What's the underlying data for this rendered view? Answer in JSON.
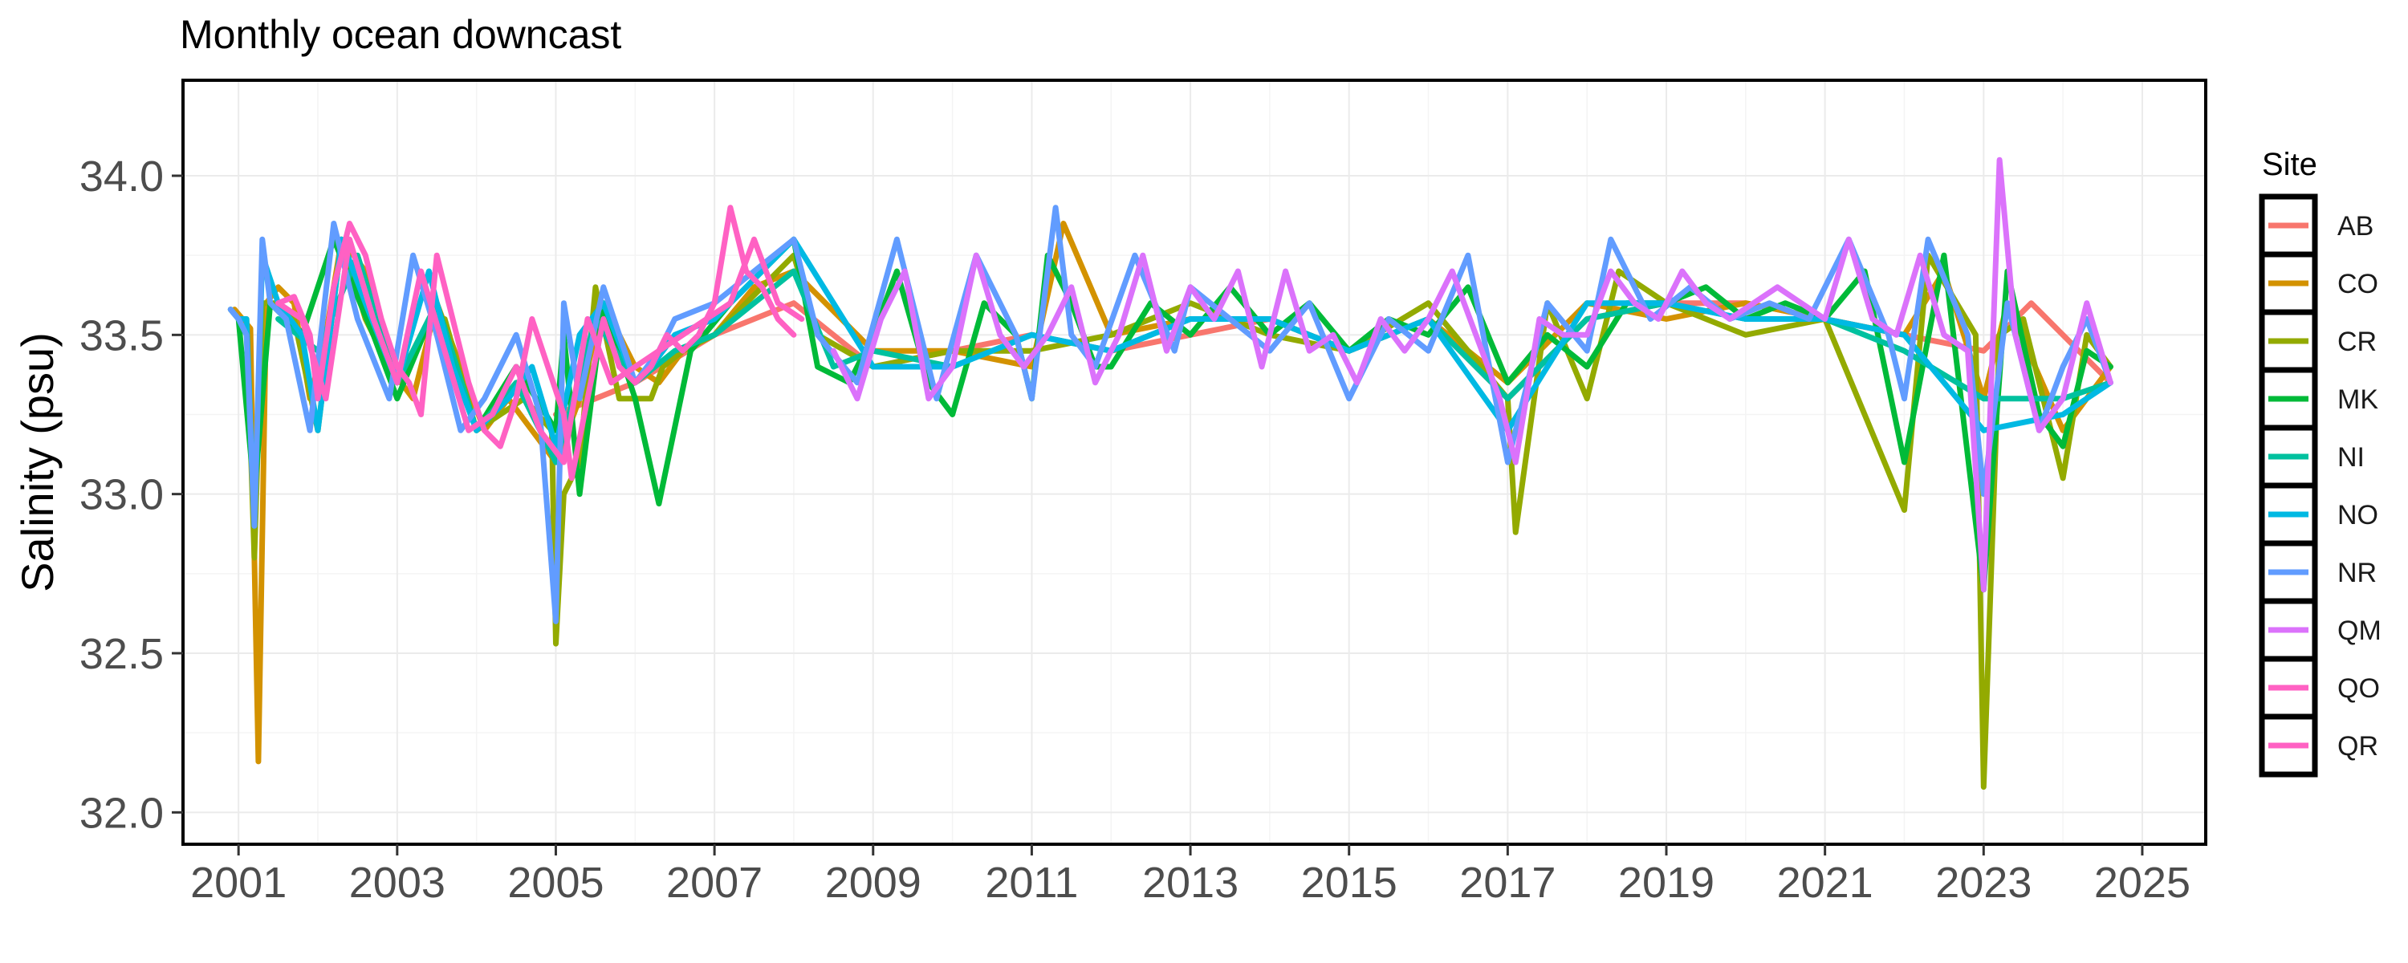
{
  "chart_data": {
    "type": "line",
    "title": "Monthly ocean downcast",
    "xlabel": "",
    "ylabel": "Salinity (psu)",
    "xlim": [
      2000.3,
      2025.8
    ],
    "ylim": [
      31.9,
      34.3
    ],
    "x_ticks": [
      2001,
      2003,
      2005,
      2007,
      2009,
      2011,
      2013,
      2015,
      2017,
      2019,
      2021,
      2023,
      2025
    ],
    "x_tick_labels": [
      "2001",
      "2003",
      "2005",
      "2007",
      "2009",
      "2011",
      "2013",
      "2015",
      "2017",
      "2019",
      "2021",
      "2023",
      "2025"
    ],
    "y_ticks": [
      32.0,
      32.5,
      33.0,
      33.5,
      34.0
    ],
    "y_tick_labels": [
      "32.0",
      "32.5",
      "33.0",
      "33.5",
      "34.0"
    ],
    "grid": true,
    "legend": {
      "title": "Site",
      "position": "right"
    },
    "series": [
      {
        "name": "AB",
        "color": "#F8766D",
        "x": [
          2005.0,
          2006.0,
          2007.0,
          2008.0,
          2009.0,
          2010.0,
          2011.0,
          2012.0,
          2013.0,
          2014.0,
          2015.0,
          2016.0,
          2017.0,
          2018.0,
          2019.0,
          2020.0,
          2021.0,
          2022.0,
          2023.0,
          2023.6,
          2024.6
        ],
        "y": [
          33.25,
          33.35,
          33.5,
          33.6,
          33.4,
          33.45,
          33.5,
          33.45,
          33.5,
          33.55,
          33.45,
          33.55,
          33.3,
          33.55,
          33.6,
          33.6,
          33.55,
          33.5,
          33.45,
          33.6,
          33.35
        ]
      },
      {
        "name": "CO",
        "color": "#D39200",
        "x": [
          2000.95,
          2001.05,
          2001.15,
          2001.2,
          2001.25,
          2001.35,
          2001.5,
          2001.7,
          2001.9,
          2002.1,
          2002.3,
          2002.6,
          2002.9,
          2003.2,
          2003.5,
          2003.8,
          2004.1,
          2004.4,
          2004.7,
          2005.0,
          2005.3,
          2005.6,
          2006.0,
          2006.3,
          2006.6,
          2007.0,
          2007.5,
          2008.0,
          2009.0,
          2010.0,
          2011.0,
          2011.4,
          2012.0,
          2013.0,
          2014.0,
          2015.0,
          2016.0,
          2017.0,
          2018.0,
          2019.0,
          2020.0,
          2021.0,
          2022.0,
          2022.5,
          2023.0,
          2023.3,
          2024.0,
          2024.6
        ],
        "y": [
          33.58,
          33.55,
          33.52,
          32.8,
          32.16,
          33.6,
          33.65,
          33.6,
          33.3,
          33.5,
          33.8,
          33.7,
          33.4,
          33.3,
          33.6,
          33.4,
          33.2,
          33.3,
          33.2,
          33.1,
          33.3,
          33.6,
          33.4,
          33.35,
          33.45,
          33.5,
          33.65,
          33.7,
          33.45,
          33.45,
          33.4,
          33.85,
          33.5,
          33.55,
          33.55,
          33.45,
          33.55,
          33.35,
          33.6,
          33.55,
          33.6,
          33.55,
          33.5,
          33.7,
          33.3,
          33.6,
          33.2,
          33.4
        ]
      },
      {
        "name": "CR",
        "color": "#93AA00",
        "x": [
          2000.9,
          2001.0,
          2001.1,
          2001.2,
          2001.3,
          2001.5,
          2001.7,
          2002.0,
          2002.3,
          2002.6,
          2003.0,
          2003.3,
          2003.6,
          2004.0,
          2004.3,
          2004.6,
          2004.95,
          2005.0,
          2005.1,
          2005.3,
          2005.5,
          2005.8,
          2006.0,
          2006.2,
          2006.35,
          2006.6,
          2007.0,
          2008.0,
          2008.3,
          2009.0,
          2010.0,
          2011.0,
          2012.0,
          2013.0,
          2014.0,
          2015.0,
          2016.0,
          2017.0,
          2017.1,
          2017.5,
          2018.0,
          2018.4,
          2019.0,
          2020.0,
          2021.0,
          2022.0,
          2022.3,
          2022.9,
          2023.0,
          2023.2,
          2023.5,
          2024.0,
          2024.3,
          2024.6
        ],
        "y": [
          33.58,
          33.55,
          33.55,
          32.8,
          33.6,
          33.6,
          33.55,
          33.2,
          33.8,
          33.55,
          33.35,
          33.5,
          33.55,
          33.2,
          33.25,
          33.3,
          33.2,
          32.53,
          33.0,
          33.1,
          33.65,
          33.3,
          33.3,
          33.3,
          33.4,
          33.45,
          33.5,
          33.75,
          33.5,
          33.4,
          33.45,
          33.45,
          33.5,
          33.6,
          33.5,
          33.45,
          33.6,
          33.3,
          32.88,
          33.6,
          33.3,
          33.7,
          33.6,
          33.5,
          33.55,
          32.95,
          33.75,
          33.5,
          32.08,
          33.5,
          33.55,
          33.05,
          33.5,
          33.4
        ]
      },
      {
        "name": "MK",
        "color": "#00BA38",
        "x": [
          2001.0,
          2001.2,
          2001.4,
          2001.8,
          2002.2,
          2002.7,
          2003.0,
          2003.5,
          2004.0,
          2004.5,
          2005.0,
          2005.1,
          2005.3,
          2005.6,
          2006.0,
          2006.3,
          2006.7,
          2007.2,
          2008.0,
          2008.3,
          2008.7,
          2009.0,
          2009.3,
          2009.7,
          2010.0,
          2010.4,
          2010.8,
          2011.0,
          2011.2,
          2011.5,
          2011.8,
          2012.0,
          2012.5,
          2013.0,
          2013.5,
          2014.0,
          2014.5,
          2015.0,
          2015.5,
          2016.0,
          2016.5,
          2017.0,
          2017.5,
          2018.0,
          2018.5,
          2019.0,
          2019.5,
          2020.0,
          2020.5,
          2021.0,
          2021.5,
          2022.0,
          2022.5,
          2023.0,
          2023.3,
          2023.7,
          2024.0,
          2024.3,
          2024.6
        ],
        "y": [
          33.55,
          33.0,
          33.6,
          33.5,
          33.8,
          33.5,
          33.3,
          33.6,
          33.2,
          33.4,
          33.2,
          33.5,
          33.0,
          33.6,
          33.3,
          32.97,
          33.45,
          33.6,
          33.8,
          33.4,
          33.35,
          33.5,
          33.7,
          33.35,
          33.25,
          33.6,
          33.5,
          33.3,
          33.75,
          33.6,
          33.4,
          33.4,
          33.6,
          33.5,
          33.65,
          33.5,
          33.6,
          33.45,
          33.55,
          33.5,
          33.65,
          33.35,
          33.5,
          33.4,
          33.6,
          33.6,
          33.65,
          33.55,
          33.6,
          33.55,
          33.7,
          33.1,
          33.75,
          32.7,
          33.7,
          33.25,
          33.15,
          33.45,
          33.4
        ]
      },
      {
        "name": "NI",
        "color": "#00C19F",
        "x": [
          2001.5,
          2002.0,
          2002.5,
          2003.0,
          2003.5,
          2004.0,
          2004.5,
          2005.0,
          2005.5,
          2006.0,
          2006.5,
          2007.0,
          2008.0,
          2008.5,
          2009.0,
          2010.0,
          2011.0,
          2012.0,
          2013.0,
          2014.0,
          2015.0,
          2016.0,
          2017.0,
          2018.0,
          2019.0,
          2020.0,
          2021.0,
          2022.0,
          2023.0,
          2024.0,
          2024.6
        ],
        "y": [
          33.55,
          33.45,
          33.75,
          33.35,
          33.6,
          33.2,
          33.35,
          33.1,
          33.55,
          33.35,
          33.45,
          33.5,
          33.7,
          33.4,
          33.45,
          33.4,
          33.5,
          33.45,
          33.55,
          33.55,
          33.45,
          33.55,
          33.3,
          33.55,
          33.6,
          33.55,
          33.55,
          33.45,
          33.3,
          33.3,
          33.35
        ]
      },
      {
        "name": "NO",
        "color": "#00B9E3",
        "x": [
          2000.9,
          2001.0,
          2001.1,
          2001.2,
          2001.3,
          2001.5,
          2001.8,
          2002.0,
          2002.3,
          2002.6,
          2003.0,
          2003.4,
          2003.7,
          2004.0,
          2004.4,
          2004.7,
          2005.0,
          2005.3,
          2005.6,
          2006.0,
          2006.2,
          2006.5,
          2007.0,
          2008.0,
          2009.0,
          2010.0,
          2011.0,
          2012.0,
          2013.0,
          2014.0,
          2015.0,
          2016.0,
          2017.0,
          2018.0,
          2019.0,
          2020.0,
          2021.0,
          2022.0,
          2023.0,
          2024.0,
          2024.6
        ],
        "y": [
          33.58,
          33.55,
          33.55,
          32.9,
          33.75,
          33.6,
          33.5,
          33.2,
          33.8,
          33.6,
          33.35,
          33.7,
          33.4,
          33.2,
          33.3,
          33.4,
          33.15,
          33.5,
          33.6,
          33.35,
          33.4,
          33.5,
          33.55,
          33.8,
          33.4,
          33.4,
          33.5,
          33.45,
          33.55,
          33.55,
          33.45,
          33.55,
          33.2,
          33.6,
          33.6,
          33.55,
          33.55,
          33.5,
          33.2,
          33.25,
          33.35
        ]
      },
      {
        "name": "NR",
        "color": "#619CFF",
        "x": [
          2000.9,
          2001.0,
          2001.1,
          2001.2,
          2001.3,
          2001.4,
          2001.6,
          2001.9,
          2002.2,
          2002.5,
          2002.9,
          2003.2,
          2003.5,
          2003.8,
          2004.1,
          2004.5,
          2004.8,
          2005.0,
          2005.1,
          2005.3,
          2005.6,
          2006.0,
          2006.3,
          2006.5,
          2007.0,
          2008.0,
          2008.3,
          2008.8,
          2009.3,
          2009.8,
          2010.3,
          2010.8,
          2011.0,
          2011.3,
          2011.5,
          2011.8,
          2012.3,
          2012.8,
          2013.0,
          2013.5,
          2014.0,
          2014.5,
          2015.0,
          2015.5,
          2016.0,
          2016.5,
          2017.0,
          2017.5,
          2018.0,
          2018.3,
          2018.8,
          2019.3,
          2019.8,
          2020.3,
          2020.8,
          2021.3,
          2021.8,
          2022.0,
          2022.3,
          2022.8,
          2023.0,
          2023.3,
          2023.7,
          2024.0,
          2024.3,
          2024.6
        ],
        "y": [
          33.58,
          33.55,
          33.5,
          32.9,
          33.8,
          33.6,
          33.55,
          33.2,
          33.85,
          33.55,
          33.3,
          33.75,
          33.5,
          33.2,
          33.3,
          33.5,
          33.25,
          32.6,
          33.6,
          33.3,
          33.65,
          33.35,
          33.45,
          33.55,
          33.6,
          33.8,
          33.5,
          33.35,
          33.8,
          33.3,
          33.75,
          33.5,
          33.3,
          33.9,
          33.5,
          33.4,
          33.75,
          33.45,
          33.65,
          33.55,
          33.45,
          33.6,
          33.3,
          33.55,
          33.45,
          33.75,
          33.1,
          33.6,
          33.45,
          33.8,
          33.55,
          33.65,
          33.55,
          33.6,
          33.55,
          33.8,
          33.5,
          33.3,
          33.8,
          33.5,
          33.0,
          33.6,
          33.2,
          33.4,
          33.55,
          33.35
        ]
      },
      {
        "name": "QM",
        "color": "#DB72FB",
        "x": [
          2008.5,
          2008.8,
          2009.1,
          2009.4,
          2009.7,
          2010.0,
          2010.3,
          2010.6,
          2010.9,
          2011.2,
          2011.5,
          2011.8,
          2012.1,
          2012.4,
          2012.7,
          2013.0,
          2013.3,
          2013.6,
          2013.9,
          2014.2,
          2014.5,
          2014.8,
          2015.1,
          2015.4,
          2015.7,
          2016.0,
          2016.3,
          2016.6,
          2016.9,
          2017.1,
          2017.4,
          2017.7,
          2018.0,
          2018.3,
          2018.6,
          2018.9,
          2019.2,
          2019.5,
          2019.8,
          2020.1,
          2020.4,
          2020.7,
          2021.0,
          2021.3,
          2021.6,
          2021.9,
          2022.2,
          2022.5,
          2022.8,
          2023.0,
          2023.2,
          2023.4,
          2023.7,
          2024.0,
          2024.3,
          2024.6
        ],
        "y": [
          33.45,
          33.3,
          33.55,
          33.7,
          33.3,
          33.4,
          33.75,
          33.5,
          33.4,
          33.5,
          33.65,
          33.35,
          33.5,
          33.75,
          33.45,
          33.65,
          33.55,
          33.7,
          33.4,
          33.7,
          33.45,
          33.5,
          33.35,
          33.55,
          33.45,
          33.55,
          33.7,
          33.5,
          33.3,
          33.1,
          33.55,
          33.5,
          33.5,
          33.7,
          33.6,
          33.55,
          33.7,
          33.6,
          33.55,
          33.6,
          33.65,
          33.6,
          33.55,
          33.8,
          33.55,
          33.5,
          33.75,
          33.5,
          33.45,
          32.7,
          34.05,
          33.5,
          33.2,
          33.3,
          33.6,
          33.35
        ]
      },
      {
        "name": "QO",
        "color": "#FF61C3",
        "x": [
          2001.5,
          2001.8,
          2002.1,
          2002.4,
          2002.7,
          2003.0,
          2003.3,
          2003.6,
          2003.9,
          2004.2,
          2004.5,
          2004.8,
          2005.1,
          2005.4,
          2005.7,
          2006.0,
          2006.3,
          2006.6,
          2006.9,
          2007.2,
          2007.5,
          2007.8,
          2008.1
        ],
        "y": [
          33.6,
          33.55,
          33.3,
          33.8,
          33.55,
          33.35,
          33.7,
          33.45,
          33.2,
          33.25,
          33.4,
          33.2,
          33.1,
          33.55,
          33.35,
          33.4,
          33.45,
          33.5,
          33.55,
          33.6,
          33.8,
          33.6,
          33.55
        ]
      },
      {
        "name": "QR",
        "color": "#FF61C3",
        "x": [
          2001.5,
          2001.7,
          2001.9,
          2002.0,
          2002.2,
          2002.4,
          2002.6,
          2002.8,
          2003.0,
          2003.15,
          2003.3,
          2003.5,
          2003.7,
          2003.9,
          2004.1,
          2004.3,
          2004.5,
          2004.7,
          2004.9,
          2005.1,
          2005.2,
          2005.4,
          2005.6,
          2005.8,
          2006.0,
          2006.2,
          2006.4,
          2006.6,
          2006.8,
          2007.0,
          2007.2,
          2007.4,
          2007.6,
          2007.8,
          2008.0
        ],
        "y": [
          33.6,
          33.62,
          33.5,
          33.3,
          33.65,
          33.85,
          33.75,
          33.55,
          33.4,
          33.35,
          33.25,
          33.75,
          33.55,
          33.35,
          33.2,
          33.15,
          33.3,
          33.55,
          33.4,
          33.25,
          33.05,
          33.3,
          33.55,
          33.4,
          33.35,
          33.4,
          33.5,
          33.45,
          33.5,
          33.6,
          33.9,
          33.7,
          33.65,
          33.55,
          33.5
        ]
      }
    ]
  }
}
